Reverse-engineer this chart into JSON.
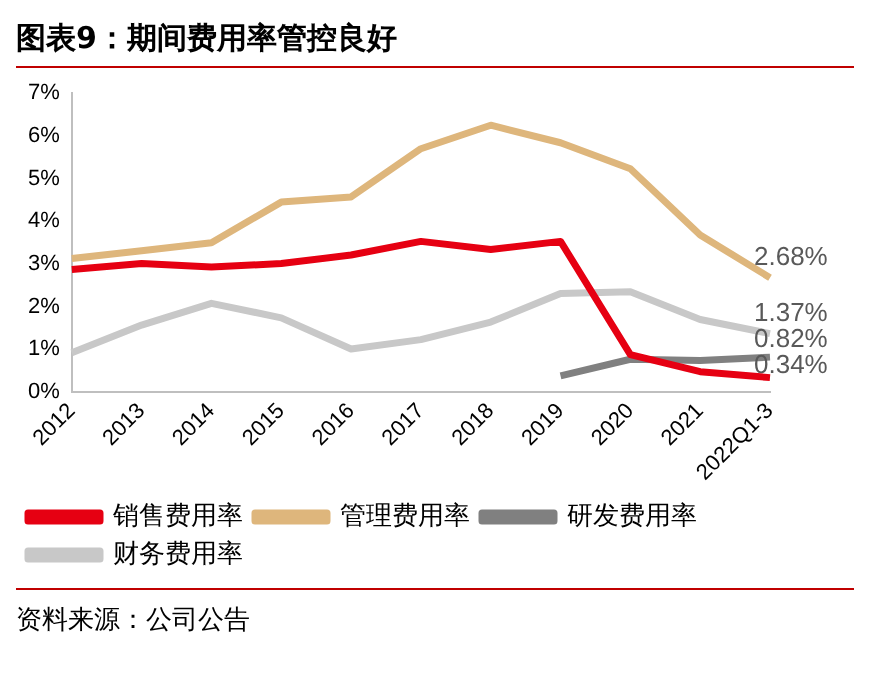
{
  "chart_data": {
    "type": "line",
    "title": "图表9：期间费用率管控良好",
    "categories": [
      "2012",
      "2013",
      "2014",
      "2015",
      "2016",
      "2017",
      "2018",
      "2019",
      "2020",
      "2021",
      "2022Q1-3"
    ],
    "series": [
      {
        "name": "销售费用率",
        "color": "#e60012",
        "values": [
          2.87,
          3.01,
          2.93,
          3.01,
          3.21,
          3.53,
          3.34,
          3.53,
          0.88,
          0.48,
          0.34
        ],
        "value_labels": [
          null,
          null,
          null,
          null,
          null,
          null,
          null,
          null,
          null,
          null,
          "0.34%"
        ]
      },
      {
        "name": "管理费用率",
        "color": "#deb67c",
        "values": [
          3.13,
          3.31,
          3.5,
          4.45,
          4.57,
          5.7,
          6.25,
          5.84,
          5.23,
          3.68,
          2.68
        ],
        "value_labels": [
          null,
          null,
          null,
          null,
          null,
          null,
          null,
          null,
          null,
          null,
          "2.68%"
        ]
      },
      {
        "name": "研发费用率",
        "color": "#808080",
        "values": [
          null,
          null,
          null,
          null,
          null,
          null,
          null,
          0.38,
          0.77,
          0.74,
          0.82
        ],
        "value_labels": [
          null,
          null,
          null,
          null,
          null,
          null,
          null,
          null,
          null,
          null,
          "0.82%"
        ]
      },
      {
        "name": "财务费用率",
        "color": "#c8c8c8",
        "values": [
          0.92,
          1.57,
          2.08,
          1.74,
          1.01,
          1.23,
          1.64,
          2.31,
          2.35,
          1.7,
          1.37
        ],
        "value_labels": [
          null,
          null,
          null,
          null,
          null,
          null,
          null,
          null,
          null,
          null,
          "1.37%"
        ]
      }
    ],
    "ylim": [
      0,
      7
    ],
    "yticks": [
      {
        "value": 0,
        "label": "0%"
      },
      {
        "value": 1,
        "label": "1%"
      },
      {
        "value": 2,
        "label": "2%"
      },
      {
        "value": 3,
        "label": "3%"
      },
      {
        "value": 4,
        "label": "4%"
      },
      {
        "value": 5,
        "label": "5%"
      },
      {
        "value": 6,
        "label": "6%"
      },
      {
        "value": 7,
        "label": "7%"
      }
    ],
    "grid": false,
    "legend": "bottom",
    "marker": "none",
    "line_style": "solid",
    "annotations": [
      "资料来源：公司公告"
    ]
  }
}
